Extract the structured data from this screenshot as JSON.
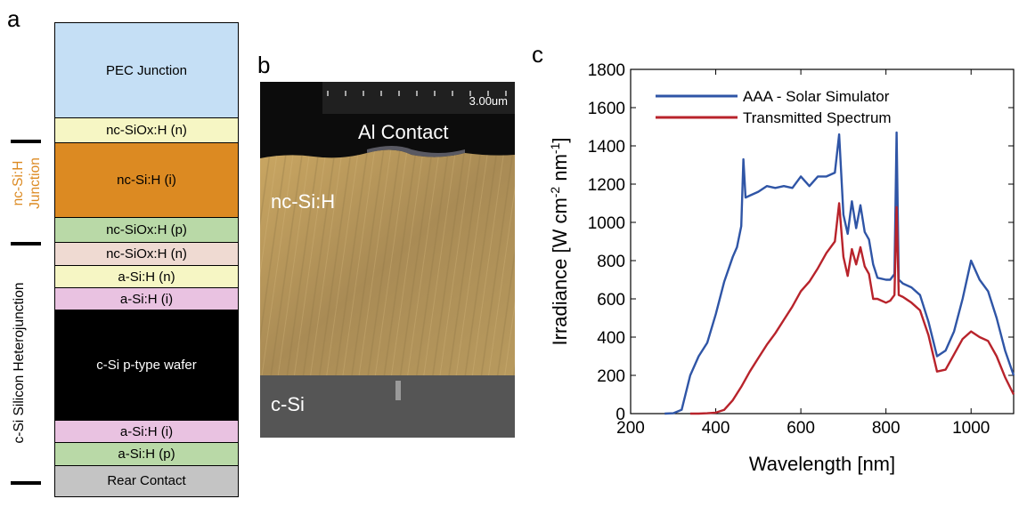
{
  "panel_a": {
    "letter": "a",
    "layers": [
      {
        "label": "PEC Junction",
        "color": "#c5dff5",
        "text_color": "#000000"
      },
      {
        "label": "nc-SiOx:H (n)",
        "color": "#f6f6c4",
        "text_color": "#000000"
      },
      {
        "label": "nc-Si:H (i)",
        "color": "#dc8a22",
        "text_color": "#000000"
      },
      {
        "label": "nc-SiOx:H (p)",
        "color": "#b9d9a7",
        "text_color": "#000000"
      },
      {
        "label": "nc-SiOx:H (n)",
        "color": "#efdad2",
        "text_color": "#000000"
      },
      {
        "label": "a-Si:H (n)",
        "color": "#f6f6c4",
        "text_color": "#000000"
      },
      {
        "label": "a-Si:H (i)",
        "color": "#e9c2e1",
        "text_color": "#000000"
      },
      {
        "label": "c-Si p-type wafer",
        "color": "#000000",
        "text_color": "#ffffff"
      },
      {
        "label": "a-Si:H (i)",
        "color": "#e9c2e1",
        "text_color": "#000000"
      },
      {
        "label": "a-Si:H (p)",
        "color": "#b9d9a7",
        "text_color": "#000000"
      },
      {
        "label": "Rear Contact",
        "color": "#c4c4c4",
        "text_color": "#000000"
      }
    ],
    "side_labels": {
      "nc_junction_line1": "nc-Si:H",
      "nc_junction_line2": "Junction",
      "nc_junction_color": "#dc8a22",
      "csi_junction": "c-Si Silicon Heterojunction"
    }
  },
  "panel_b": {
    "letter": "b",
    "scale_bar": "3.00um",
    "labels": {
      "top": "Al Contact",
      "middle": "nc-Si:H",
      "bottom": "c-Si"
    },
    "colors": {
      "contact": "#0c0c0c",
      "ncsi": "#b89a5e",
      "csi": "#555555"
    }
  },
  "panel_c": {
    "letter": "c",
    "chart_data": {
      "type": "line",
      "title": "",
      "xlabel": "Wavelength [nm]",
      "ylabel_parts": [
        "Irradiance [W cm",
        "-2",
        " nm",
        "-1",
        "]"
      ],
      "xlim": [
        200,
        1100
      ],
      "ylim": [
        0,
        1800
      ],
      "xticks": [
        200,
        400,
        600,
        800,
        1000
      ],
      "yticks": [
        0,
        200,
        400,
        600,
        800,
        1000,
        1200,
        1400,
        1600,
        1800
      ],
      "legend_position": "top-left",
      "series": [
        {
          "name": "AAA - Solar Simulator",
          "color": "#2f55a6",
          "x": [
            280,
            300,
            320,
            340,
            360,
            380,
            400,
            420,
            440,
            450,
            460,
            465,
            470,
            480,
            500,
            520,
            540,
            560,
            580,
            600,
            620,
            640,
            660,
            680,
            690,
            700,
            710,
            720,
            730,
            740,
            750,
            760,
            770,
            780,
            800,
            810,
            820,
            825,
            830,
            840,
            860,
            880,
            900,
            920,
            940,
            960,
            980,
            1000,
            1020,
            1040,
            1060,
            1080,
            1100
          ],
          "y": [
            0,
            2,
            20,
            200,
            300,
            370,
            520,
            690,
            820,
            870,
            980,
            1330,
            1130,
            1140,
            1160,
            1190,
            1180,
            1190,
            1180,
            1240,
            1190,
            1240,
            1240,
            1260,
            1460,
            1040,
            940,
            1110,
            970,
            1090,
            950,
            910,
            780,
            710,
            700,
            700,
            730,
            1470,
            700,
            680,
            660,
            620,
            480,
            300,
            330,
            430,
            600,
            800,
            700,
            640,
            500,
            330,
            200
          ]
        },
        {
          "name": "Transmitted Spectrum",
          "color": "#b8232b",
          "x": [
            340,
            360,
            380,
            400,
            420,
            440,
            460,
            480,
            500,
            520,
            540,
            560,
            580,
            600,
            620,
            640,
            660,
            680,
            690,
            700,
            710,
            720,
            730,
            740,
            750,
            760,
            770,
            780,
            800,
            810,
            820,
            825,
            830,
            840,
            860,
            880,
            900,
            920,
            940,
            960,
            980,
            1000,
            1020,
            1040,
            1060,
            1080,
            1100
          ],
          "y": [
            0,
            0,
            2,
            5,
            20,
            70,
            140,
            220,
            290,
            360,
            420,
            490,
            560,
            640,
            690,
            760,
            840,
            900,
            1100,
            820,
            720,
            860,
            780,
            870,
            770,
            730,
            600,
            600,
            580,
            590,
            620,
            1080,
            620,
            610,
            580,
            540,
            410,
            220,
            230,
            310,
            390,
            430,
            400,
            380,
            300,
            190,
            100
          ]
        }
      ]
    }
  }
}
